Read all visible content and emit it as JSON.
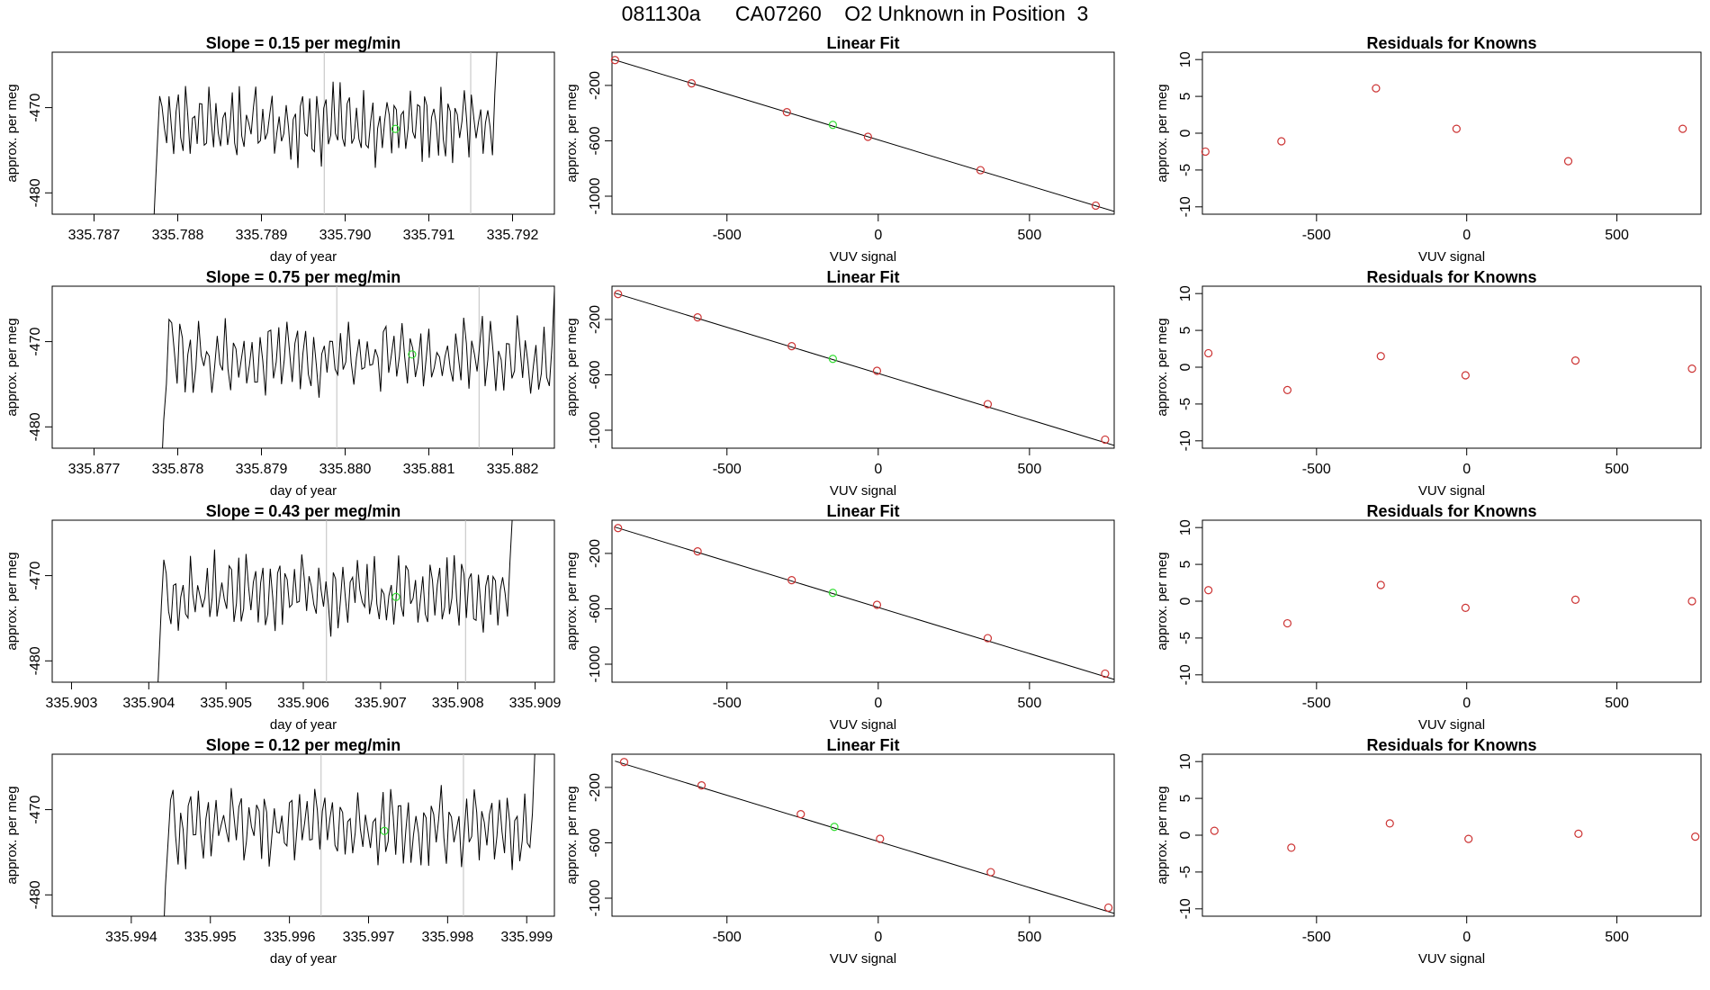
{
  "page_title": "081130a      CA07260    O2 Unknown in Position  3",
  "colors": {
    "trace": "#000000",
    "known_point": "#cc3333",
    "unknown_point": "#33dd33",
    "cursor_line": "#bfbfbf",
    "axis": "#000000"
  },
  "chart_data": [
    {
      "type": "line",
      "title": "Slope =  0.15  per meg/min",
      "xlabel": "day of year",
      "ylabel": "approx. per meg",
      "xlim": [
        335.7865,
        335.7925
      ],
      "ylim": [
        -482.5,
        -463.5
      ],
      "xticks": [
        "335.787",
        "335.788",
        "335.789",
        "335.790",
        "335.791",
        "335.792"
      ],
      "yticks": [
        "-470",
        "-480"
      ],
      "vlines": [
        335.78975,
        335.7915
      ],
      "unknown_point": {
        "x": 335.7906,
        "y": -472.5
      },
      "trace_range": [
        335.7877,
        335.7919
      ]
    },
    {
      "type": "scatter",
      "title": "Linear Fit",
      "xlabel": "VUV signal",
      "ylabel": "approx. per meg",
      "xlim": [
        -880,
        780
      ],
      "ylim": [
        -1130,
        40
      ],
      "xticks": [
        "-500",
        "0",
        "500"
      ],
      "yticks": [
        "-200",
        "-600",
        "-1000"
      ],
      "line": {
        "x": [
          -880,
          780
        ],
        "y": [
          -10,
          -1110
        ]
      },
      "known_x": [
        -870,
        -617,
        -302,
        -34,
        338,
        719
      ],
      "known_y": [
        -17,
        -185,
        -393,
        -571,
        -812,
        -1068
      ],
      "unknown": {
        "x": -150,
        "y": -485
      }
    },
    {
      "type": "scatter",
      "title": "Residuals for Knowns",
      "xlabel": "VUV signal",
      "ylabel": "approx. per meg",
      "xlim": [
        -880,
        780
      ],
      "ylim": [
        -11,
        11
      ],
      "xticks": [
        "-500",
        "0",
        "500"
      ],
      "yticks": [
        "10",
        "5",
        "0",
        "-5",
        "-10"
      ],
      "x": [
        -870,
        -617,
        -302,
        -34,
        338,
        719
      ],
      "y": [
        -2.5,
        -1.1,
        6.1,
        0.6,
        -3.8,
        0.6
      ]
    },
    {
      "type": "line",
      "title": "Slope =  0.75  per meg/min",
      "xlabel": "day of year",
      "ylabel": "approx. per meg",
      "xlim": [
        335.8765,
        335.8825
      ],
      "ylim": [
        -482.5,
        -463.5
      ],
      "xticks": [
        "335.877",
        "335.878",
        "335.879",
        "335.880",
        "335.881",
        "335.882"
      ],
      "yticks": [
        "-470",
        "-480"
      ],
      "vlines": [
        335.8799,
        335.8816
      ],
      "unknown_point": {
        "x": 335.8808,
        "y": -471.5
      },
      "trace_range": [
        335.8778,
        335.8826
      ]
    },
    {
      "type": "scatter",
      "title": "Linear Fit",
      "xlabel": "VUV signal",
      "ylabel": "approx. per meg",
      "xlim": [
        -880,
        780
      ],
      "ylim": [
        -1130,
        40
      ],
      "xticks": [
        "-500",
        "0",
        "500"
      ],
      "yticks": [
        "-200",
        "-600",
        "-1000"
      ],
      "line": {
        "x": [
          -870,
          780
        ],
        "y": [
          -10,
          -1110
        ]
      },
      "known_x": [
        -860,
        -597,
        -286,
        -4,
        362,
        750
      ],
      "known_y": [
        -17,
        -185,
        -393,
        -571,
        -812,
        -1068
      ],
      "unknown": {
        "x": -150,
        "y": -485
      }
    },
    {
      "type": "scatter",
      "title": "Residuals for Knowns",
      "xlabel": "VUV signal",
      "ylabel": "approx. per meg",
      "xlim": [
        -880,
        780
      ],
      "ylim": [
        -11,
        11
      ],
      "xticks": [
        "-500",
        "0",
        "500"
      ],
      "yticks": [
        "10",
        "5",
        "0",
        "-5",
        "-10"
      ],
      "x": [
        -860,
        -597,
        -286,
        -4,
        362,
        750
      ],
      "y": [
        1.9,
        -3.1,
        1.5,
        -1.1,
        0.9,
        -0.2
      ]
    },
    {
      "type": "line",
      "title": "Slope =  0.43  per meg/min",
      "xlabel": "day of year",
      "ylabel": "approx. per meg",
      "xlim": [
        335.90275,
        335.90925
      ],
      "ylim": [
        -482.5,
        -463.5
      ],
      "xticks": [
        "335.903",
        "335.904",
        "335.905",
        "335.906",
        "335.907",
        "335.908",
        "335.909"
      ],
      "yticks": [
        "-470",
        "-480"
      ],
      "vlines": [
        335.9063,
        335.9081
      ],
      "unknown_point": {
        "x": 335.9072,
        "y": -472.5
      },
      "trace_range": [
        335.9041,
        335.9088
      ]
    },
    {
      "type": "scatter",
      "title": "Linear Fit",
      "xlabel": "VUV signal",
      "ylabel": "approx. per meg",
      "xlim": [
        -880,
        780
      ],
      "ylim": [
        -1130,
        40
      ],
      "xticks": [
        "-500",
        "0",
        "500"
      ],
      "yticks": [
        "-200",
        "-600",
        "-1000"
      ],
      "line": {
        "x": [
          -870,
          780
        ],
        "y": [
          -10,
          -1110
        ]
      },
      "known_x": [
        -860,
        -597,
        -286,
        -4,
        362,
        750
      ],
      "known_y": [
        -17,
        -185,
        -393,
        -571,
        -812,
        -1068
      ],
      "unknown": {
        "x": -150,
        "y": -485
      }
    },
    {
      "type": "scatter",
      "title": "Residuals for Knowns",
      "xlabel": "VUV signal",
      "ylabel": "approx. per meg",
      "xlim": [
        -880,
        780
      ],
      "ylim": [
        -11,
        11
      ],
      "xticks": [
        "-500",
        "0",
        "500"
      ],
      "yticks": [
        "10",
        "5",
        "0",
        "-5",
        "-10"
      ],
      "x": [
        -860,
        -597,
        -286,
        -4,
        362,
        750
      ],
      "y": [
        1.5,
        -3.0,
        2.2,
        -0.9,
        0.2,
        0.0
      ]
    },
    {
      "type": "line",
      "title": "Slope =  0.12  per meg/min",
      "xlabel": "day of year",
      "ylabel": "approx. per meg",
      "xlim": [
        335.993,
        335.99935
      ],
      "ylim": [
        -482.5,
        -463.5
      ],
      "xticks": [
        "335.994",
        "335.995",
        "335.996",
        "335.997",
        "335.998",
        "335.999"
      ],
      "yticks": [
        "-470",
        "-480"
      ],
      "vlines": [
        335.9964,
        335.9982
      ],
      "unknown_point": {
        "x": 335.9972,
        "y": -472.5
      },
      "trace_range": [
        335.9944,
        335.9992
      ]
    },
    {
      "type": "scatter",
      "title": "Linear Fit",
      "xlabel": "VUV signal",
      "ylabel": "approx. per meg",
      "xlim": [
        -880,
        780
      ],
      "ylim": [
        -1130,
        40
      ],
      "xticks": [
        "-500",
        "0",
        "500"
      ],
      "yticks": [
        "-200",
        "-600",
        "-1000"
      ],
      "line": {
        "x": [
          -870,
          780
        ],
        "y": [
          -10,
          -1110
        ]
      },
      "known_x": [
        -840,
        -584,
        -256,
        6,
        372,
        761
      ],
      "known_y": [
        -17,
        -185,
        -393,
        -571,
        -812,
        -1068
      ],
      "unknown": {
        "x": -145,
        "y": -485
      }
    },
    {
      "type": "scatter",
      "title": "Residuals for Knowns",
      "xlabel": "VUV signal",
      "ylabel": "approx. per meg",
      "xlim": [
        -880,
        780
      ],
      "ylim": [
        -11,
        11
      ],
      "xticks": [
        "-500",
        "0",
        "500"
      ],
      "yticks": [
        "10",
        "5",
        "0",
        "-5",
        "-10"
      ],
      "x": [
        -840,
        -584,
        -256,
        6,
        372,
        761
      ],
      "y": [
        0.6,
        -1.7,
        1.6,
        -0.5,
        0.2,
        -0.2
      ]
    }
  ]
}
